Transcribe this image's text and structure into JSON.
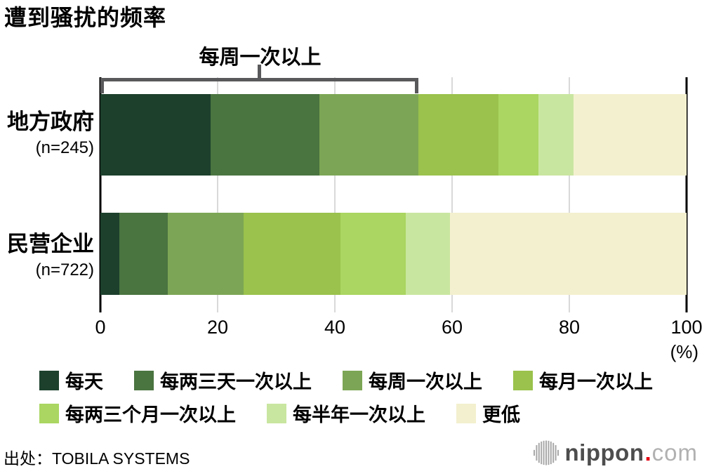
{
  "title": "遭到骚扰的频率",
  "annotation": {
    "label": "每周一次以上",
    "span_series": 3
  },
  "chart_data": {
    "type": "bar",
    "orientation": "horizontal-stacked",
    "title": "遭到骚扰的频率",
    "categories": [
      "地方政府",
      "民营企业"
    ],
    "category_sublabels": [
      "(n=245)",
      "(n=722)"
    ],
    "series": [
      {
        "name": "每天",
        "color": "#1c402c",
        "values": [
          18.8,
          3.2
        ]
      },
      {
        "name": "每两三天一次以上",
        "color": "#4a7440",
        "values": [
          18.6,
          8.3
        ]
      },
      {
        "name": "每周一次以上",
        "color": "#7ca655",
        "values": [
          16.9,
          12.9
        ]
      },
      {
        "name": "每月一次以上",
        "color": "#9ac24c",
        "values": [
          13.6,
          16.6
        ]
      },
      {
        "name": "每两三个月一次以上",
        "color": "#aad661",
        "values": [
          6.8,
          11.1
        ]
      },
      {
        "name": "每半年一次以上",
        "color": "#c9e6a0",
        "values": [
          6.0,
          7.6
        ]
      },
      {
        "name": "更低",
        "color": "#f3f0cf",
        "values": [
          19.3,
          40.3
        ]
      }
    ],
    "x_ticks": [
      "0",
      "20",
      "40",
      "60",
      "80",
      "100"
    ],
    "x_unit": "(%)",
    "xlim": [
      0,
      100
    ],
    "grid": true,
    "legend_position": "bottom"
  },
  "legend": {
    "rows": [
      4,
      3
    ]
  },
  "colors": {
    "bracket": "#59595b",
    "grid": "#d9d9d9",
    "axis": "#000000",
    "logo_text": "#4d4d4d",
    "logo_dot": "#e60012",
    "logo_com": "#b1b1b1",
    "logo_icon": "#a8a8a8"
  },
  "footer": {
    "source": "出处：TOBILA SYSTEMS",
    "logo": {
      "word1": "nippon",
      "dot": ".",
      "word2": "com"
    }
  }
}
